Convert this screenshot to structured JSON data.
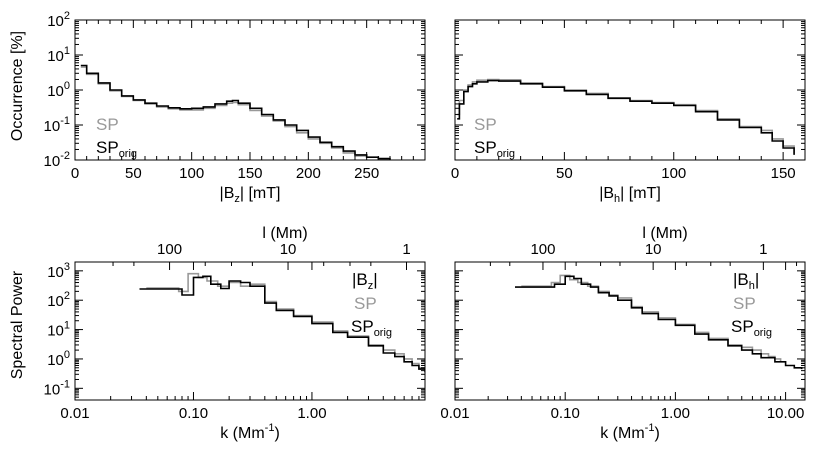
{
  "figure": {
    "ylabel_top": "Occurrence [%]",
    "ylabel_bottom": "Spectral Power"
  },
  "legend": {
    "sp": "SP",
    "sp_orig_main": "SP",
    "sp_orig_sub": "orig",
    "bz_open": "|B",
    "bz_sub": "z",
    "bz_close": "|",
    "bh_open": "|B",
    "bh_sub": "h",
    "bh_close": "|"
  },
  "colors": {
    "sp": "#999999",
    "sp_orig": "#000000",
    "axis": "#000000"
  },
  "chart_data": [
    {
      "id": "hist-bz",
      "type": "line",
      "step": true,
      "title": "",
      "xlabel_main": "|B",
      "xlabel_sub": "z",
      "xlabel_tail": "| [mT]",
      "ylabel": "Occurrence [%]",
      "xscale": "linear",
      "yscale": "log",
      "xlim": [
        0,
        300
      ],
      "ylim": [
        0.01,
        100
      ],
      "xticks": [
        0,
        50,
        100,
        150,
        200,
        250
      ],
      "xtick_labels": [
        "0",
        "50",
        "100",
        "150",
        "200",
        "250"
      ],
      "yticks": [
        0.01,
        0.1,
        1,
        10,
        100
      ],
      "ytick_labels": [
        [
          "10",
          "-2"
        ],
        [
          "10",
          "-1"
        ],
        [
          "10",
          "0"
        ],
        [
          "10",
          "1"
        ],
        [
          "10",
          "2"
        ]
      ],
      "legend_position": "bottom-left",
      "series": [
        {
          "name": "SP",
          "color": "#999999",
          "x": [
            5,
            10,
            20,
            30,
            40,
            50,
            60,
            70,
            80,
            90,
            100,
            110,
            120,
            130,
            135,
            140,
            150,
            160,
            170,
            180,
            190,
            200,
            210,
            220,
            230,
            240,
            250
          ],
          "y": [
            4.5,
            2.8,
            1.5,
            0.95,
            0.65,
            0.5,
            0.4,
            0.33,
            0.29,
            0.27,
            0.27,
            0.3,
            0.36,
            0.42,
            0.44,
            0.38,
            0.26,
            0.18,
            0.13,
            0.09,
            0.06,
            0.04,
            0.03,
            0.022,
            0.016,
            0.013,
            0.012
          ]
        },
        {
          "name": "SP_orig",
          "color": "#000000",
          "x": [
            5,
            10,
            20,
            30,
            40,
            50,
            60,
            70,
            80,
            90,
            100,
            110,
            120,
            130,
            135,
            140,
            150,
            160,
            170,
            180,
            190,
            200,
            210,
            220,
            230,
            240,
            250,
            260,
            270
          ],
          "y": [
            5.0,
            3.0,
            1.6,
            1.0,
            0.68,
            0.52,
            0.42,
            0.35,
            0.31,
            0.29,
            0.3,
            0.33,
            0.4,
            0.48,
            0.5,
            0.42,
            0.3,
            0.2,
            0.14,
            0.1,
            0.07,
            0.045,
            0.032,
            0.024,
            0.018,
            0.014,
            0.012,
            0.011,
            0.01
          ]
        }
      ]
    },
    {
      "id": "hist-bh",
      "type": "line",
      "step": true,
      "title": "",
      "xlabel_main": "|B",
      "xlabel_sub": "h",
      "xlabel_tail": "| [mT]",
      "ylabel": "",
      "xscale": "linear",
      "yscale": "log",
      "xlim": [
        0,
        160
      ],
      "ylim": [
        0.01,
        100
      ],
      "xticks": [
        0,
        50,
        100,
        150
      ],
      "xtick_labels": [
        "0",
        "50",
        "100",
        "150"
      ],
      "yticks": [
        0.01,
        0.1,
        1,
        10,
        100
      ],
      "ytick_labels": [],
      "legend_position": "bottom-left",
      "series": [
        {
          "name": "SP",
          "color": "#999999",
          "x": [
            1,
            2,
            4,
            6,
            8,
            10,
            15,
            20,
            30,
            40,
            50,
            60,
            70,
            80,
            90,
            100,
            110,
            120,
            130,
            140,
            145,
            150,
            155
          ],
          "y": [
            0.2,
            0.5,
            1.0,
            1.4,
            1.7,
            1.9,
            2.0,
            1.95,
            1.6,
            1.25,
            1.0,
            0.8,
            0.6,
            0.5,
            0.44,
            0.38,
            0.26,
            0.15,
            0.09,
            0.07,
            0.04,
            0.025,
            0.015
          ]
        },
        {
          "name": "SP_orig",
          "color": "#000000",
          "x": [
            1,
            2,
            4,
            6,
            8,
            10,
            15,
            20,
            30,
            40,
            50,
            60,
            70,
            80,
            90,
            100,
            110,
            120,
            130,
            140,
            145,
            150,
            155
          ],
          "y": [
            0.15,
            0.4,
            0.9,
            1.25,
            1.5,
            1.7,
            1.85,
            1.8,
            1.5,
            1.2,
            0.95,
            0.75,
            0.58,
            0.48,
            0.42,
            0.36,
            0.24,
            0.14,
            0.085,
            0.06,
            0.035,
            0.022,
            0.014
          ]
        }
      ]
    },
    {
      "id": "spec-bz",
      "type": "line",
      "step": true,
      "title": "",
      "xlabel_main": "k (Mm",
      "xlabel_sup": "-1",
      "xlabel_tail": ")",
      "top_xlabel": "l (Mm)",
      "ylabel": "Spectral Power",
      "xscale": "log",
      "yscale": "log",
      "xlim": [
        0.01,
        9
      ],
      "ylim": [
        0.04,
        2000
      ],
      "xticks": [
        0.01,
        0.1,
        1
      ],
      "xtick_labels": [
        "0.01",
        "0.10",
        "1.00"
      ],
      "top_ticks_l": [
        100,
        10,
        1
      ],
      "top_tick_labels": [
        "100",
        "10",
        "1"
      ],
      "yticks": [
        0.1,
        1,
        10,
        100,
        1000
      ],
      "ytick_labels": [
        [
          "10",
          "-1"
        ],
        [
          "10",
          "0"
        ],
        [
          "10",
          "1"
        ],
        [
          "10",
          "2"
        ],
        [
          "10",
          "3"
        ]
      ],
      "legend_position": "top-right",
      "series": [
        {
          "name": "SP",
          "color": "#999999",
          "k": [
            0.04,
            0.055,
            0.075,
            0.09,
            0.11,
            0.13,
            0.16,
            0.2,
            0.25,
            0.3,
            0.4,
            0.5,
            0.7,
            1.0,
            1.5,
            2.0,
            3.0,
            4.0,
            5.0,
            6.0,
            7.0,
            8.0,
            9.0
          ],
          "p": [
            260,
            260,
            200,
            800,
            600,
            450,
            300,
            400,
            300,
            350,
            90,
            50,
            30,
            18,
            9,
            6,
            3,
            2,
            1.5,
            1.0,
            0.7,
            0.5,
            0.4
          ]
        },
        {
          "name": "SP_orig",
          "color": "#000000",
          "k": [
            0.035,
            0.05,
            0.08,
            0.1,
            0.12,
            0.14,
            0.17,
            0.2,
            0.25,
            0.3,
            0.4,
            0.5,
            0.7,
            1.0,
            1.5,
            2.0,
            3.0,
            4.0,
            5.0,
            6.0,
            7.0,
            8.0,
            9.0
          ],
          "p": [
            240,
            240,
            150,
            600,
            650,
            350,
            250,
            450,
            400,
            300,
            80,
            45,
            28,
            16,
            8,
            5.5,
            2.8,
            1.6,
            1.2,
            0.8,
            0.6,
            0.45,
            0.35
          ]
        }
      ]
    },
    {
      "id": "spec-bh",
      "type": "line",
      "step": true,
      "title": "",
      "xlabel_main": "k (Mm",
      "xlabel_sup": "-1",
      "xlabel_tail": ")",
      "top_xlabel": "l (Mm)",
      "ylabel": "",
      "xscale": "log",
      "yscale": "log",
      "xlim": [
        0.01,
        15
      ],
      "ylim": [
        0.04,
        2000
      ],
      "xticks": [
        0.01,
        0.1,
        1,
        10
      ],
      "xtick_labels": [
        "0.01",
        "0.10",
        "1.00",
        "10.00"
      ],
      "top_ticks_l": [
        100,
        10,
        1
      ],
      "top_tick_labels": [
        "100",
        "10",
        "1"
      ],
      "yticks": [
        0.1,
        1,
        10,
        100,
        1000
      ],
      "ytick_labels": [],
      "legend_position": "top-right",
      "series": [
        {
          "name": "SP",
          "color": "#999999",
          "k": [
            0.04,
            0.055,
            0.075,
            0.09,
            0.11,
            0.13,
            0.16,
            0.2,
            0.25,
            0.3,
            0.4,
            0.5,
            0.7,
            1.0,
            1.5,
            2.0,
            3.0,
            4.0,
            5.0,
            6.0,
            7.0,
            8.0,
            9.0
          ],
          "p": [
            300,
            300,
            400,
            700,
            500,
            400,
            300,
            200,
            150,
            120,
            60,
            40,
            25,
            15,
            8,
            5,
            3,
            2.5,
            2.0,
            1.5,
            1.2,
            1.0,
            0.8
          ]
        },
        {
          "name": "SP_orig",
          "color": "#000000",
          "k": [
            0.035,
            0.05,
            0.08,
            0.1,
            0.12,
            0.14,
            0.17,
            0.2,
            0.25,
            0.3,
            0.4,
            0.5,
            0.7,
            1.0,
            1.5,
            2.0,
            3.0,
            4.0,
            5.0,
            6.0,
            8.0,
            10.0,
            12.0,
            14.0
          ],
          "p": [
            280,
            280,
            350,
            650,
            550,
            350,
            280,
            180,
            140,
            100,
            55,
            35,
            22,
            14,
            7,
            4.5,
            2.8,
            2.0,
            1.5,
            1.1,
            0.8,
            0.6,
            0.5,
            0.45
          ]
        }
      ]
    }
  ]
}
